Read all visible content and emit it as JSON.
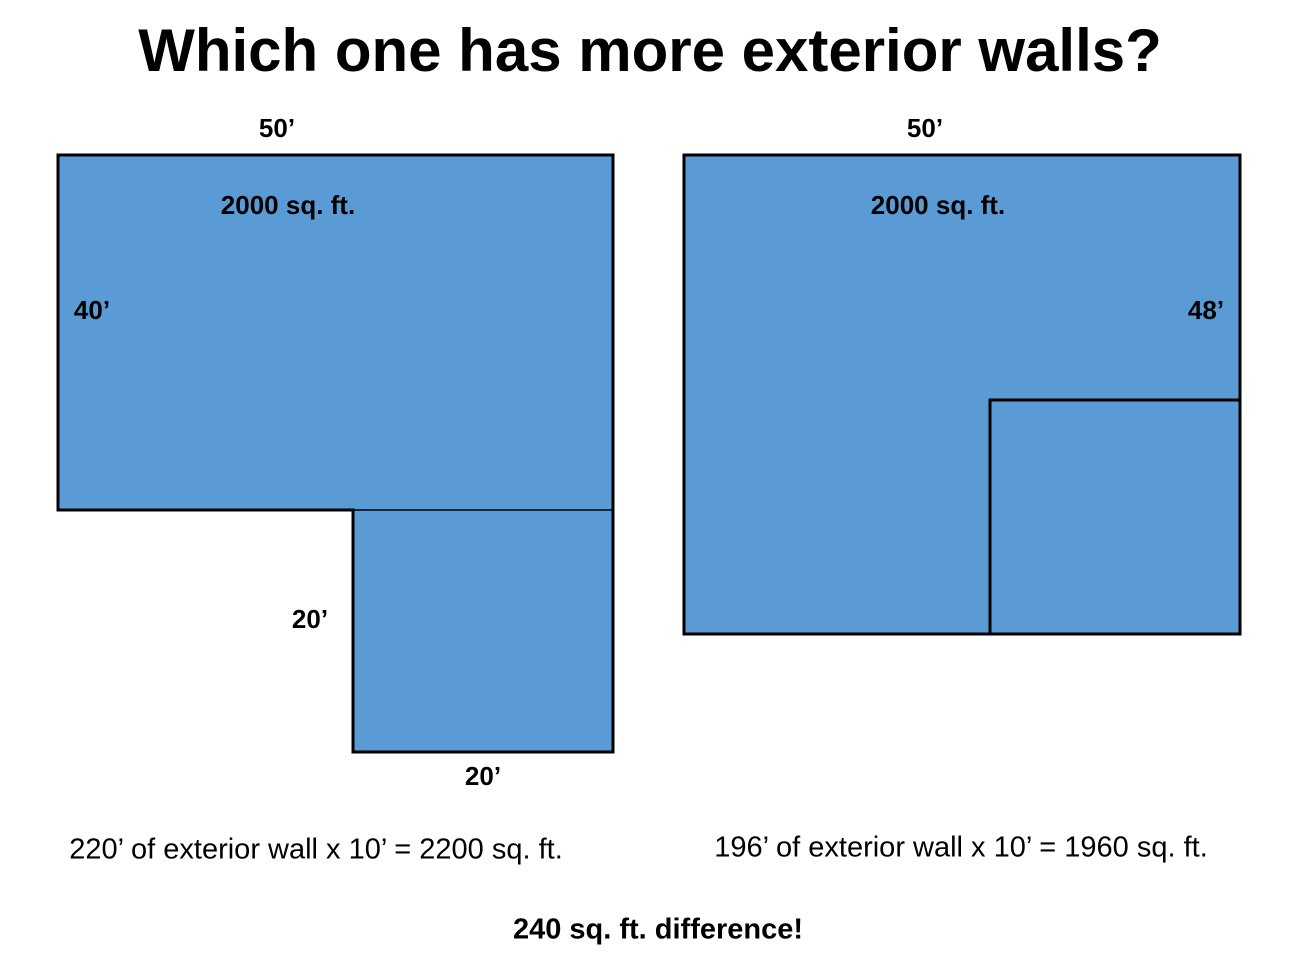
{
  "title": "Which one has more exterior walls?",
  "plans": [
    {
      "width_label": "50’",
      "area_label": "2000 sq. ft.",
      "side_label": "40’",
      "wing_side_label": "20’",
      "wing_bottom_label": "20’",
      "caption": "220’ of exterior wall x 10’ = 2200 sq. ft."
    },
    {
      "width_label": "50’",
      "area_label": "2000 sq. ft.",
      "side_label": "48’",
      "caption": "196’ of exterior wall x 10’ = 1960 sq. ft."
    }
  ],
  "conclusion": "240 sq. ft. difference!"
}
